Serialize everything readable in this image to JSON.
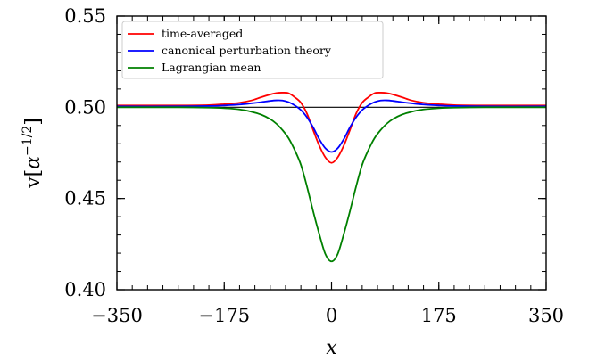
{
  "chart_data": {
    "type": "line",
    "xlabel": "x",
    "ylabel": {
      "prefix": "v[",
      "base": "α",
      "exponent": "−1/2",
      "suffix": "]"
    },
    "xlim": [
      -350,
      350
    ],
    "ylim": [
      0.4,
      0.55
    ],
    "xticks": [
      -350,
      -175,
      0,
      175,
      350
    ],
    "xtick_labels": [
      "−350",
      "−175",
      "0",
      "175",
      "350"
    ],
    "yticks": [
      0.4,
      0.45,
      0.5,
      0.55
    ],
    "ytick_labels": [
      "0.40",
      "0.45",
      "0.50",
      "0.55"
    ],
    "grid": false,
    "legend_position": "top-left",
    "reference_line": 0.5,
    "series": [
      {
        "name": "time-averaged",
        "color": "#ff0000",
        "x": [
          -350,
          -250,
          -200,
          -175,
          -150,
          -130,
          -115,
          -100,
          -90,
          -80,
          -70,
          -60,
          -50,
          -40,
          -30,
          -20,
          -10,
          0,
          10,
          20,
          30,
          40,
          50,
          60,
          70,
          80,
          90,
          100,
          115,
          130,
          150,
          175,
          200,
          250,
          350
        ],
        "y": [
          0.501,
          0.501,
          0.5012,
          0.5017,
          0.5025,
          0.5038,
          0.5055,
          0.507,
          0.5078,
          0.508,
          0.5077,
          0.5055,
          0.5025,
          0.4965,
          0.4875,
          0.479,
          0.4725,
          0.4695,
          0.4725,
          0.479,
          0.4875,
          0.4965,
          0.5025,
          0.5055,
          0.5077,
          0.508,
          0.5078,
          0.507,
          0.5055,
          0.5038,
          0.5025,
          0.5017,
          0.5012,
          0.501,
          0.501
        ]
      },
      {
        "name": "canonical perturbation theory",
        "color": "#0000ff",
        "x": [
          -350,
          -250,
          -200,
          -175,
          -150,
          -130,
          -115,
          -100,
          -90,
          -80,
          -70,
          -60,
          -50,
          -40,
          -30,
          -20,
          -10,
          0,
          10,
          20,
          30,
          40,
          50,
          60,
          70,
          80,
          90,
          100,
          115,
          130,
          150,
          175,
          200,
          250,
          350
        ],
        "y": [
          0.5005,
          0.5005,
          0.5007,
          0.501,
          0.5015,
          0.5022,
          0.5028,
          0.5035,
          0.5038,
          0.5037,
          0.5028,
          0.501,
          0.4985,
          0.4945,
          0.489,
          0.4825,
          0.4775,
          0.4755,
          0.4775,
          0.4825,
          0.489,
          0.4945,
          0.4985,
          0.501,
          0.5028,
          0.5037,
          0.5038,
          0.5035,
          0.5028,
          0.5022,
          0.5015,
          0.501,
          0.5007,
          0.5005,
          0.5005
        ]
      },
      {
        "name": "Lagrangian mean",
        "color": "#008000",
        "x": [
          -350,
          -250,
          -200,
          -175,
          -150,
          -130,
          -115,
          -100,
          -90,
          -80,
          -70,
          -60,
          -50,
          -40,
          -30,
          -20,
          -10,
          0,
          10,
          20,
          30,
          40,
          50,
          60,
          70,
          80,
          90,
          100,
          115,
          130,
          150,
          175,
          200,
          250,
          350
        ],
        "y": [
          0.5,
          0.5,
          0.4998,
          0.4995,
          0.4988,
          0.4975,
          0.496,
          0.4935,
          0.491,
          0.4875,
          0.483,
          0.4765,
          0.4685,
          0.4565,
          0.443,
          0.4305,
          0.4195,
          0.4155,
          0.4195,
          0.4305,
          0.443,
          0.4565,
          0.4685,
          0.4765,
          0.483,
          0.4875,
          0.491,
          0.4935,
          0.496,
          0.4975,
          0.4988,
          0.4995,
          0.4998,
          0.5,
          0.5
        ]
      }
    ]
  }
}
